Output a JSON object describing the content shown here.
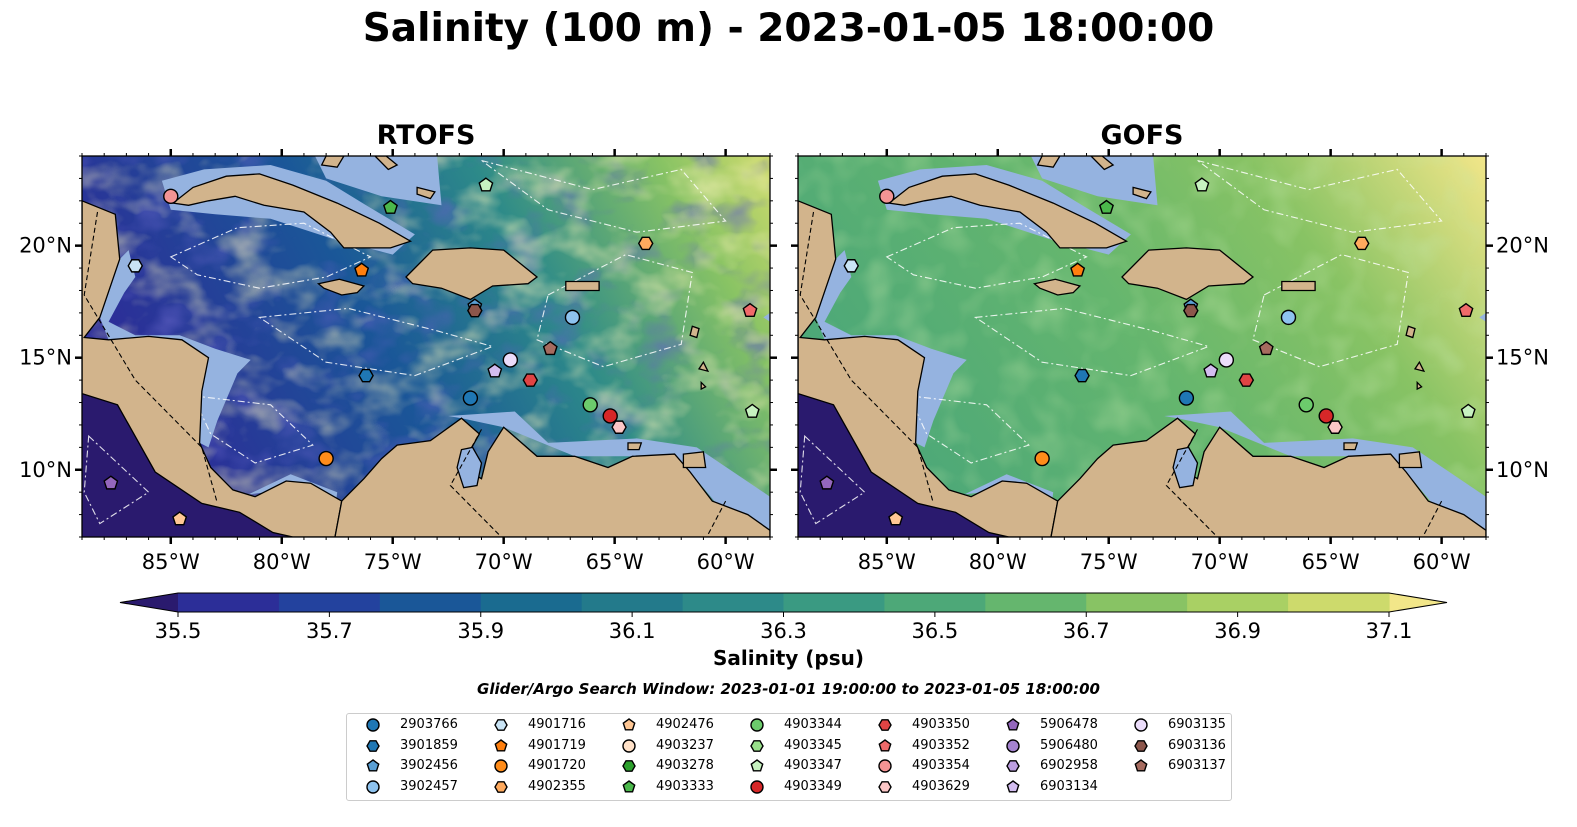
{
  "figure": {
    "title": "Salinity (100 m) - 2023-01-05 18:00:00",
    "colorbar_label": "Salinity (psu)",
    "search_window": "Glider/Argo Search Window: 2023-01-01 19:00:00 to 2023-01-05 18:00:00"
  },
  "chart_data": [
    {
      "type": "heatmap",
      "title": "RTOFS",
      "variable": "Salinity (100 m)",
      "xlim": [
        -89,
        -58
      ],
      "ylim": [
        7,
        24
      ],
      "xticks": [
        "85°W",
        "80°W",
        "75°W",
        "70°W",
        "65°W",
        "60°W"
      ],
      "yticks": [
        "10°N",
        "15°N",
        "20°N"
      ],
      "ytick_side": "left",
      "general_pattern": "lower salinity (35.5–35.9) in western/central Caribbean, higher (36.7–37.1) toward the northeast Atlantic"
    },
    {
      "type": "heatmap",
      "title": "GOFS",
      "variable": "Salinity (100 m)",
      "xlim": [
        -89,
        -58
      ],
      "ylim": [
        7,
        24
      ],
      "xticks": [
        "85°W",
        "80°W",
        "75°W",
        "70°W",
        "65°W",
        "60°W"
      ],
      "yticks": [
        "10°N",
        "15°N",
        "20°N"
      ],
      "ytick_side": "right",
      "general_pattern": "mostly 36.3–36.7 across the Caribbean, 36.9–37.1 in the northeast Atlantic"
    },
    {
      "type": "colorbar",
      "label": "Salinity (psu)",
      "range": [
        35.4,
        37.2
      ],
      "extend": "both",
      "ticks": [
        "35.5",
        "35.7",
        "35.9",
        "36.1",
        "36.3",
        "36.5",
        "36.7",
        "36.9",
        "37.1"
      ],
      "colors": [
        "#2a1a6e",
        "#2c2e98",
        "#23429e",
        "#1a5798",
        "#1a6b90",
        "#237a8b",
        "#2d8a89",
        "#3a9a82",
        "#4da878",
        "#65b66e",
        "#88c364",
        "#a9d064",
        "#cdda6c",
        "#f2e689"
      ]
    }
  ],
  "legend": {
    "items": [
      {
        "id": "2903766",
        "color": "#1f77b4",
        "marker": "circle"
      },
      {
        "id": "3901859",
        "color": "#1f77b4",
        "marker": "hexagon"
      },
      {
        "id": "3902456",
        "color": "#5a9fd4",
        "marker": "pentagon"
      },
      {
        "id": "3902457",
        "color": "#8ec3ef",
        "marker": "circle"
      },
      {
        "id": "4901716",
        "color": "#c9e4f5",
        "marker": "hexagon"
      },
      {
        "id": "4901719",
        "color": "#ff7f0e",
        "marker": "pentagon"
      },
      {
        "id": "4901720",
        "color": "#ff8c1a",
        "marker": "circle"
      },
      {
        "id": "4902355",
        "color": "#ffaa5e",
        "marker": "hexagon"
      },
      {
        "id": "4902476",
        "color": "#ffc794",
        "marker": "pentagon"
      },
      {
        "id": "4903237",
        "color": "#ffe1c8",
        "marker": "circle"
      },
      {
        "id": "4903278",
        "color": "#2ca02c",
        "marker": "hexagon"
      },
      {
        "id": "4903333",
        "color": "#4bb84b",
        "marker": "pentagon"
      },
      {
        "id": "4903344",
        "color": "#6ccb6c",
        "marker": "circle"
      },
      {
        "id": "4903345",
        "color": "#98df8a",
        "marker": "hexagon"
      },
      {
        "id": "4903347",
        "color": "#c7f2c0",
        "marker": "pentagon"
      },
      {
        "id": "4903349",
        "color": "#d62728",
        "marker": "circle"
      },
      {
        "id": "4903350",
        "color": "#e04444",
        "marker": "hexagon"
      },
      {
        "id": "4903352",
        "color": "#f06a6a",
        "marker": "pentagon"
      },
      {
        "id": "4903354",
        "color": "#f49494",
        "marker": "circle"
      },
      {
        "id": "4903629",
        "color": "#fbc6c6",
        "marker": "hexagon"
      },
      {
        "id": "5906478",
        "color": "#9467bd",
        "marker": "pentagon"
      },
      {
        "id": "5906480",
        "color": "#a583d0",
        "marker": "circle"
      },
      {
        "id": "6902958",
        "color": "#bc9ee0",
        "marker": "hexagon"
      },
      {
        "id": "6903134",
        "color": "#d3bdf0",
        "marker": "pentagon"
      },
      {
        "id": "6903135",
        "color": "#ebdcfa",
        "marker": "circle"
      },
      {
        "id": "6903136",
        "color": "#8c564b",
        "marker": "hexagon"
      },
      {
        "id": "6903137",
        "color": "#a66b5f",
        "marker": "pentagon"
      }
    ]
  },
  "floats": [
    {
      "id": "4903354",
      "lon": -85.0,
      "lat": 22.2
    },
    {
      "id": "4901716",
      "lon": -86.6,
      "lat": 19.1
    },
    {
      "id": "5906478",
      "lon": -87.7,
      "lat": 9.4
    },
    {
      "id": "4902476",
      "lon": -84.6,
      "lat": 7.8
    },
    {
      "id": "4903333",
      "lon": -75.1,
      "lat": 21.7
    },
    {
      "id": "4903347",
      "lon": -70.8,
      "lat": 22.7
    },
    {
      "id": "4902355",
      "lon": -63.6,
      "lat": 20.1
    },
    {
      "id": "4901719",
      "lon": -76.4,
      "lat": 18.9
    },
    {
      "id": "3902456",
      "lon": -71.3,
      "lat": 17.3
    },
    {
      "id": "6903136",
      "lon": -71.3,
      "lat": 17.1
    },
    {
      "id": "3902457",
      "lon": -66.9,
      "lat": 16.8
    },
    {
      "id": "4903352",
      "lon": -58.9,
      "lat": 17.1
    },
    {
      "id": "6903137",
      "lon": -67.9,
      "lat": 15.4
    },
    {
      "id": "6903135",
      "lon": -69.7,
      "lat": 14.9
    },
    {
      "id": "6903134",
      "lon": -70.4,
      "lat": 14.4
    },
    {
      "id": "3901859",
      "lon": -76.2,
      "lat": 14.2
    },
    {
      "id": "4903350",
      "lon": -68.8,
      "lat": 14.0
    },
    {
      "id": "2903766",
      "lon": -71.5,
      "lat": 13.2
    },
    {
      "id": "4903344",
      "lon": -66.1,
      "lat": 12.9
    },
    {
      "id": "4903349",
      "lon": -65.2,
      "lat": 12.4
    },
    {
      "id": "4903629",
      "lon": -64.8,
      "lat": 11.9
    },
    {
      "id": "4903347",
      "lon": -58.8,
      "lat": 12.6
    },
    {
      "id": "4901720",
      "lon": -78.0,
      "lat": 10.5
    }
  ]
}
